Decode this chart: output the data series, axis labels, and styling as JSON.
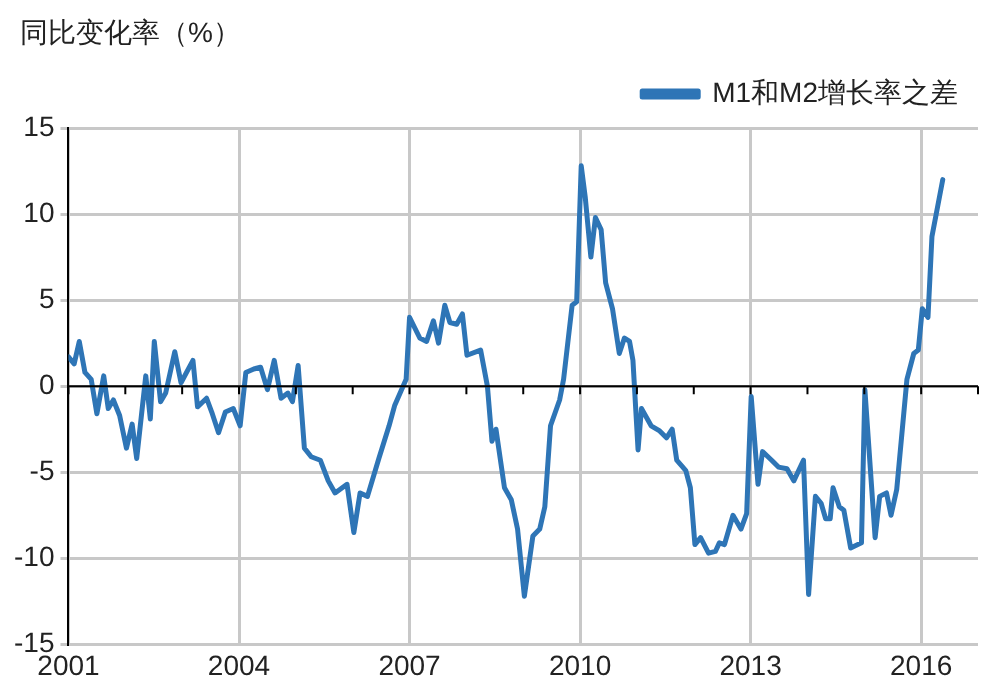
{
  "chart_data": {
    "type": "line",
    "ylabel": "同比变化率（%）",
    "legend": "top right",
    "grid": true,
    "line_style": "solid",
    "marker": "none",
    "xlim": [
      2001,
      2017
    ],
    "ylim": [
      -15,
      15
    ],
    "xticks": [
      2001,
      {
        "value": 2002,
        "label": null
      },
      {
        "value": 2003,
        "label": null
      },
      2004,
      {
        "value": 2005,
        "label": null
      },
      {
        "value": 2006,
        "label": null
      },
      2007,
      {
        "value": 2008,
        "label": null
      },
      {
        "value": 2009,
        "label": null
      },
      2010,
      {
        "value": 2011,
        "label": null
      },
      {
        "value": 2012,
        "label": null
      },
      2013,
      {
        "value": 2014,
        "label": null
      },
      {
        "value": 2015,
        "label": null
      },
      2016,
      {
        "value": 2017,
        "label": null
      }
    ],
    "yticks": [
      -15,
      -10,
      -5,
      0,
      5,
      10,
      15
    ],
    "series": [
      {
        "name": "M1和M2增长率之差",
        "color": "#2e75b6",
        "x": [
          2001.0,
          2001.1,
          2001.19,
          2001.29,
          2001.4,
          2001.5,
          2001.62,
          2001.7,
          2001.79,
          2001.9,
          2002.02,
          2002.12,
          2002.2,
          2002.36,
          2002.44,
          2002.51,
          2002.62,
          2002.71,
          2002.87,
          2002.98,
          2003.19,
          2003.27,
          2003.43,
          2003.52,
          2003.64,
          2003.76,
          2003.9,
          2004.02,
          2004.12,
          2004.26,
          2004.38,
          2004.5,
          2004.62,
          2004.74,
          2004.86,
          2004.94,
          2005.04,
          2005.15,
          2005.27,
          2005.43,
          2005.57,
          2005.69,
          2005.9,
          2006.02,
          2006.13,
          2006.26,
          2006.46,
          2006.64,
          2006.74,
          2006.94,
          2007.0,
          2007.18,
          2007.3,
          2007.42,
          2007.51,
          2007.62,
          2007.71,
          2007.83,
          2007.93,
          2008.01,
          2008.25,
          2008.37,
          2008.45,
          2008.52,
          2008.67,
          2008.79,
          2008.9,
          2009.02,
          2009.17,
          2009.29,
          2009.38,
          2009.48,
          2009.64,
          2009.71,
          2009.86,
          2009.94,
          2010.02,
          2010.09,
          2010.19,
          2010.27,
          2010.37,
          2010.45,
          2010.57,
          2010.69,
          2010.78,
          2010.87,
          2010.93,
          2011.02,
          2011.08,
          2011.25,
          2011.4,
          2011.52,
          2011.62,
          2011.7,
          2011.86,
          2011.94,
          2012.02,
          2012.12,
          2012.26,
          2012.38,
          2012.45,
          2012.54,
          2012.69,
          2012.83,
          2012.93,
          2013.01,
          2013.13,
          2013.21,
          2013.37,
          2013.49,
          2013.64,
          2013.76,
          2013.93,
          2014.02,
          2014.14,
          2014.24,
          2014.32,
          2014.4,
          2014.45,
          2014.56,
          2014.64,
          2014.76,
          2014.95,
          2015.01,
          2015.19,
          2015.27,
          2015.39,
          2015.47,
          2015.57,
          2015.75,
          2015.87,
          2015.95,
          2016.02,
          2016.12,
          2016.19,
          2016.38
        ],
        "values": [
          1.7,
          1.3,
          2.6,
          0.8,
          0.4,
          -1.6,
          0.6,
          -1.3,
          -0.8,
          -1.7,
          -3.6,
          -2.2,
          -4.2,
          0.6,
          -1.9,
          2.6,
          -0.9,
          -0.4,
          2.0,
          0.2,
          1.5,
          -1.2,
          -0.7,
          -1.5,
          -2.7,
          -1.5,
          -1.3,
          -2.3,
          0.8,
          1.0,
          1.1,
          -0.2,
          1.5,
          -0.7,
          -0.4,
          -0.9,
          1.2,
          -3.6,
          -4.1,
          -4.3,
          -5.5,
          -6.2,
          -5.7,
          -8.5,
          -6.2,
          -6.4,
          -4.2,
          -2.3,
          -1.1,
          0.4,
          4.0,
          2.8,
          2.6,
          3.8,
          2.5,
          4.7,
          3.7,
          3.6,
          4.2,
          1.8,
          2.1,
          0.0,
          -3.2,
          -2.5,
          -5.9,
          -6.6,
          -8.3,
          -12.2,
          -8.7,
          -8.3,
          -7.0,
          -2.3,
          -0.8,
          0.4,
          4.7,
          4.9,
          12.8,
          11.0,
          7.5,
          9.8,
          9.1,
          6.0,
          4.5,
          1.9,
          2.8,
          2.6,
          1.5,
          -3.7,
          -1.3,
          -2.3,
          -2.6,
          -3.0,
          -2.5,
          -4.3,
          -4.9,
          -5.9,
          -9.2,
          -8.8,
          -9.7,
          -9.6,
          -9.1,
          -9.2,
          -7.5,
          -8.3,
          -7.4,
          -0.6,
          -5.7,
          -3.8,
          -4.3,
          -4.7,
          -4.8,
          -5.5,
          -4.3,
          -12.1,
          -6.4,
          -6.8,
          -7.7,
          -7.7,
          -5.9,
          -7.0,
          -7.2,
          -9.4,
          -9.1,
          -0.2,
          -8.8,
          -6.4,
          -6.2,
          -7.5,
          -6.0,
          0.4,
          1.9,
          2.1,
          4.5,
          4.0,
          8.7,
          12.0
        ]
      }
    ]
  }
}
